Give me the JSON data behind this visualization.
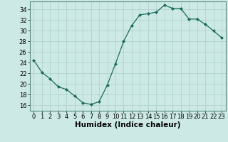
{
  "title": "",
  "x": [
    0,
    1,
    2,
    3,
    4,
    5,
    6,
    7,
    8,
    9,
    10,
    11,
    12,
    13,
    14,
    15,
    16,
    17,
    18,
    19,
    20,
    21,
    22,
    23
  ],
  "y": [
    24.5,
    22.2,
    21.0,
    19.5,
    19.0,
    17.8,
    16.5,
    16.2,
    16.7,
    19.8,
    23.8,
    28.0,
    31.0,
    33.0,
    33.2,
    33.5,
    34.8,
    34.2,
    34.2,
    32.2,
    32.2,
    31.2,
    30.0,
    28.7
  ],
  "line_color": "#1a6b5a",
  "marker": "D",
  "marker_size": 2.0,
  "bg_color": "#cce9e5",
  "grid_color": "#aacfca",
  "xlabel": "Humidex (Indice chaleur)",
  "ylim": [
    15.0,
    35.5
  ],
  "xlim": [
    -0.5,
    23.5
  ],
  "yticks": [
    16,
    18,
    20,
    22,
    24,
    26,
    28,
    30,
    32,
    34
  ],
  "xticks": [
    0,
    1,
    2,
    3,
    4,
    5,
    6,
    7,
    8,
    9,
    10,
    11,
    12,
    13,
    14,
    15,
    16,
    17,
    18,
    19,
    20,
    21,
    22,
    23
  ],
  "tick_fontsize": 6.0,
  "xlabel_fontsize": 7.5
}
